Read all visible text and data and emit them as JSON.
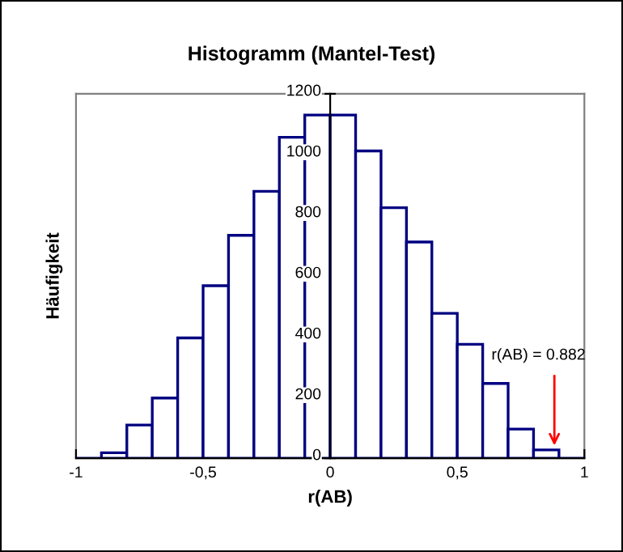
{
  "chart_data": {
    "type": "histogram",
    "title": "Histogramm (Mantel-Test)",
    "xlabel": "r(AB)",
    "ylabel": "Häufigkeit",
    "bins": [
      -1,
      -0.9,
      -0.8,
      -0.7,
      -0.6,
      -0.5,
      -0.4,
      -0.3,
      -0.2,
      -0.1,
      0,
      0.1,
      0.2,
      0.3,
      0.4,
      0.5,
      0.6,
      0.7,
      0.8,
      0.9,
      1
    ],
    "values": [
      0,
      18,
      109,
      198,
      396,
      568,
      734,
      879,
      1057,
      1130,
      1130,
      1012,
      825,
      712,
      477,
      375,
      246,
      96,
      27,
      0
    ],
    "color": "#000080",
    "xlim": [
      -1,
      1
    ],
    "ylim": [
      0,
      1200
    ],
    "xticks": [
      -1,
      {
        "value": -0.5,
        "label": "-0,5"
      },
      0,
      {
        "value": 0.5,
        "label": "0,5"
      },
      1
    ],
    "yticks": [
      0,
      200,
      400,
      600,
      800,
      1000,
      1200
    ],
    "annotations": [
      {
        "text": "r(AB) = 0.882",
        "x": 0.882,
        "y": 27
      }
    ],
    "grid": false
  }
}
